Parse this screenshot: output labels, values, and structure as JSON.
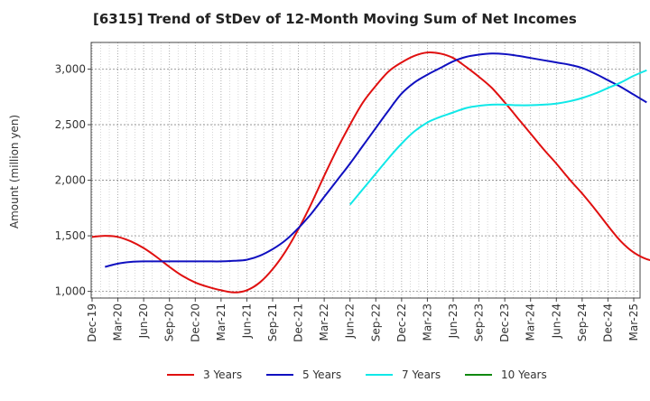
{
  "chart_data": {
    "type": "line",
    "title": "[6315]  Trend of StDev of 12-Month Moving Sum of Net Incomes",
    "ylabel": "Amount (million yen)",
    "xlabel": "",
    "ylim": [
      940,
      3240
    ],
    "yticks": [
      1000,
      1500,
      2000,
      2500,
      3000
    ],
    "ytick_labels": [
      "1,000",
      "1,500",
      "2,000",
      "2,500",
      "3,000"
    ],
    "xtick_labels": [
      "Dec-19",
      "Mar-20",
      "Jun-20",
      "Sep-20",
      "Dec-20",
      "Mar-21",
      "Jun-21",
      "Sep-21",
      "Dec-21",
      "Mar-22",
      "Jun-22",
      "Sep-22",
      "Dec-22",
      "Mar-23",
      "Jun-23",
      "Sep-23",
      "Dec-23",
      "Mar-24",
      "Jun-24",
      "Sep-24",
      "Dec-24",
      "Mar-25"
    ],
    "grid": true,
    "legend_position": "bottom",
    "series": [
      {
        "name": "3 Years",
        "color": "#e01010",
        "values": [
          1490,
          1500,
          1490,
          1450,
          1390,
          1310,
          1220,
          1140,
          1080,
          1040,
          1010,
          990,
          1010,
          1080,
          1200,
          1360,
          1560,
          1790,
          2040,
          2280,
          2500,
          2700,
          2850,
          2980,
          3060,
          3120,
          3150,
          3140,
          3100,
          3020,
          2930,
          2830,
          2700,
          2560,
          2420,
          2280,
          2150,
          2010,
          1880,
          1740,
          1590,
          1450,
          1350,
          1290,
          1270,
          1280,
          1300,
          1320
        ]
      },
      {
        "name": "5 Years",
        "color": "#1010c0",
        "values": [
          null,
          1220,
          1250,
          1265,
          1270,
          1270,
          1270,
          1270,
          1270,
          1270,
          1270,
          1275,
          1285,
          1320,
          1380,
          1460,
          1570,
          1700,
          1850,
          2000,
          2150,
          2310,
          2470,
          2630,
          2780,
          2880,
          2950,
          3010,
          3070,
          3110,
          3130,
          3140,
          3135,
          3120,
          3100,
          3080,
          3060,
          3040,
          3010,
          2960,
          2900,
          2840,
          2770,
          2700
        ]
      },
      {
        "name": "7 Years",
        "color": "#10e8e8",
        "values": [
          null,
          null,
          null,
          null,
          null,
          null,
          null,
          null,
          null,
          null,
          null,
          null,
          null,
          null,
          null,
          null,
          null,
          null,
          null,
          null,
          1780,
          1920,
          2060,
          2200,
          2330,
          2440,
          2520,
          2570,
          2610,
          2650,
          2670,
          2680,
          2680,
          2675,
          2675,
          2680,
          2690,
          2710,
          2740,
          2780,
          2830,
          2880,
          2940,
          2990
        ]
      },
      {
        "name": "10 Years",
        "color": "#108810",
        "values": []
      }
    ]
  }
}
